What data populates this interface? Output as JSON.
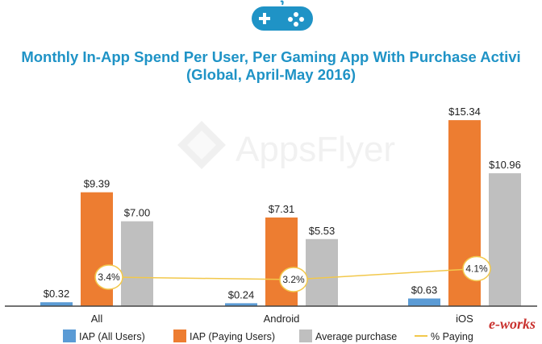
{
  "title": {
    "line1": "Monthly In-App Spend Per User, Per Gaming App With Purchase Activi",
    "line2": "(Global, April-May 2016)"
  },
  "watermark": {
    "text": "AppsFlyer"
  },
  "brand_mark": "e-works",
  "header_icon": "gamepad-icon",
  "colors": {
    "title": "#1f93c6",
    "iap_all": "#5b9bd5",
    "iap_paying": "#ed7d31",
    "avg_purchase": "#bfbfbf",
    "pct_paying": "#f2c84b",
    "axis": "#444444"
  },
  "chart_data": {
    "type": "bar",
    "title": "Monthly In-App Spend Per User, Per Gaming App With Purchase Activi",
    "subtitle": "(Global, April-May 2016)",
    "categories": [
      "All",
      "Android",
      "iOS"
    ],
    "series": [
      {
        "name": "IAP (All Users)",
        "values": [
          0.32,
          0.24,
          0.63
        ],
        "labels": [
          "$0.32",
          "$0.24",
          "$0.63"
        ]
      },
      {
        "name": "IAP (Paying Users)",
        "values": [
          9.39,
          7.31,
          15.34
        ],
        "labels": [
          "$9.39",
          "$7.31",
          "$15.34"
        ]
      },
      {
        "name": "Average purchase",
        "values": [
          7.0,
          5.53,
          10.96
        ],
        "labels": [
          "$7.00",
          "$5.53",
          "$10.96"
        ]
      }
    ],
    "line_series": {
      "name": "% Paying",
      "values": [
        3.4,
        3.2,
        4.1
      ],
      "labels": [
        "3.4%",
        "3.2%",
        "4.1%"
      ]
    },
    "ylim": [
      0,
      16
    ],
    "grid": false,
    "legend_placement": "bottom"
  }
}
